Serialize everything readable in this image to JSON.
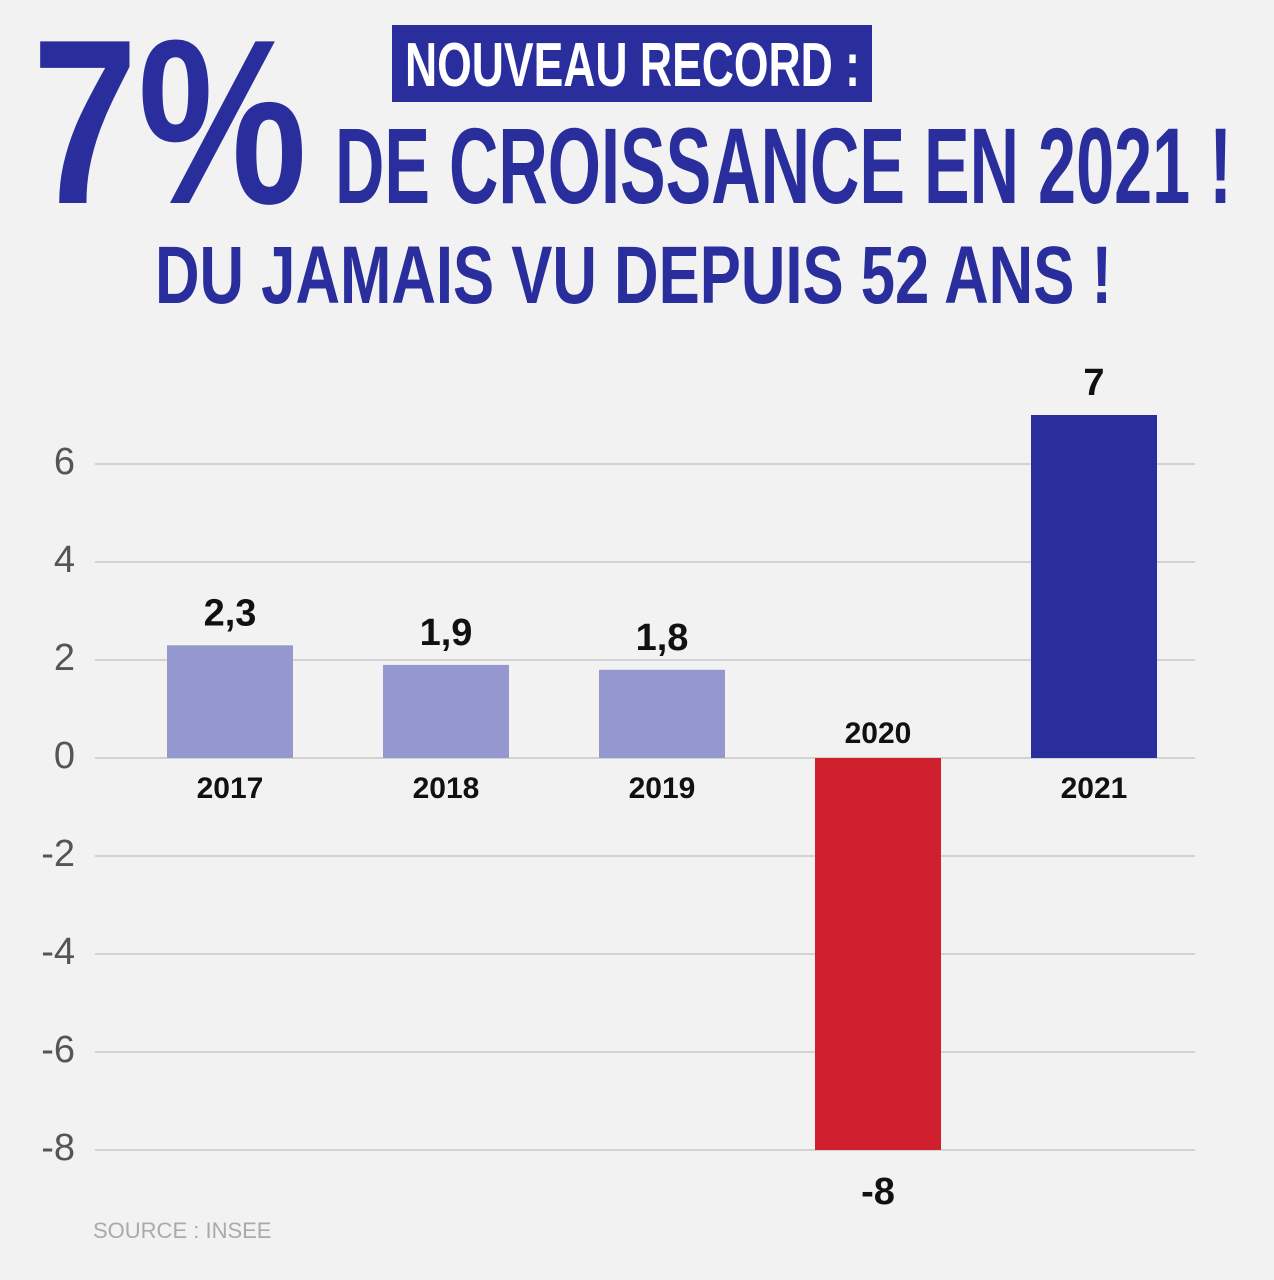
{
  "chart_data": {
    "type": "bar",
    "headline": "7%",
    "badge": "NOUVEAU RECORD :",
    "title": "DE CROISSANCE EN 2021 !",
    "subtitle": "DU JAMAIS VU DEPUIS 52 ANS !",
    "source": "SOURCE : INSEE",
    "categories": [
      "2017",
      "2018",
      "2019",
      "2020",
      "2021"
    ],
    "values": [
      2.3,
      1.9,
      1.8,
      -8,
      7
    ],
    "value_labels": [
      "2,3",
      "1,9",
      "1,8",
      "-8",
      "7"
    ],
    "colors": [
      "#9598cf",
      "#9598cf",
      "#9598cf",
      "#d0202e",
      "#2a2e9c"
    ],
    "ylim": [
      -9.5,
      7.5
    ],
    "yticks": [
      6,
      4,
      2,
      0,
      -2,
      -4,
      -6,
      -8
    ],
    "grid": true
  }
}
